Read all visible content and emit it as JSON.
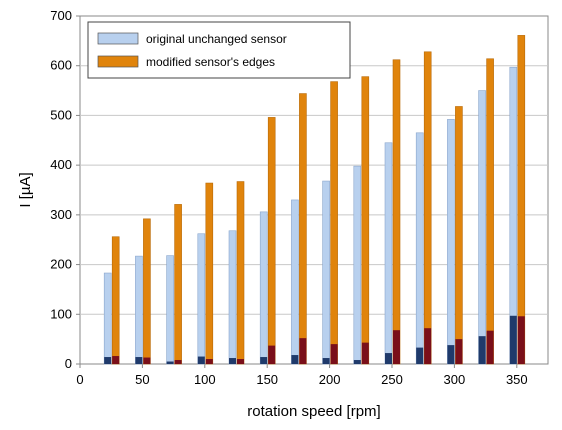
{
  "chart_data": {
    "type": "bar",
    "title": "",
    "xlabel": "rotation speed [rpm]",
    "ylabel": "I [µA]",
    "xlim": [
      0,
      375
    ],
    "ylim": [
      0,
      700
    ],
    "xticks": [
      0,
      50,
      100,
      150,
      200,
      250,
      300,
      350
    ],
    "yticks": [
      0,
      100,
      200,
      300,
      400,
      500,
      600,
      700
    ],
    "grid": true,
    "legend_position": "top-left",
    "x": [
      25,
      50,
      75,
      100,
      125,
      150,
      175,
      200,
      225,
      250,
      275,
      300,
      325,
      350
    ],
    "series": [
      {
        "name": "original unchanged sensor",
        "color": "#b8d0ee",
        "base_color": "#1f3a6b",
        "values": [
          183,
          217,
          218,
          262,
          268,
          306,
          330,
          368,
          398,
          445,
          465,
          492,
          550,
          597
        ],
        "base_values": [
          14,
          14,
          5,
          15,
          12,
          14,
          18,
          12,
          8,
          22,
          33,
          38,
          56,
          97
        ]
      },
      {
        "name": "modified sensor's edges",
        "color": "#e0840c",
        "base_color": "#7a0f1a",
        "values": [
          256,
          292,
          321,
          364,
          367,
          496,
          544,
          568,
          578,
          612,
          628,
          518,
          614,
          661
        ],
        "base_values": [
          16,
          13,
          8,
          10,
          10,
          37,
          52,
          40,
          43,
          68,
          72,
          50,
          67,
          96
        ]
      }
    ]
  }
}
